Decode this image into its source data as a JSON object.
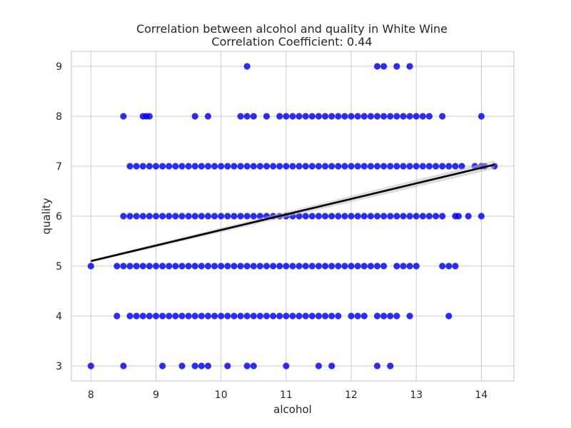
{
  "chart_data": {
    "type": "scatter",
    "title": "Correlation between alcohol and quality in White Wine",
    "subtitle": "Correlation Coefficient: 0.44",
    "xlabel": "alcohol",
    "ylabel": "quality",
    "xlim": [
      7.7,
      14.5
    ],
    "ylim": [
      2.7,
      9.3
    ],
    "xticks": [
      8,
      9,
      10,
      11,
      12,
      13,
      14
    ],
    "yticks": [
      3,
      4,
      5,
      6,
      7,
      8,
      9
    ],
    "grid": true,
    "colors": {
      "points": "#0000ee",
      "regression": "#000000",
      "ci_band": "#bbbbbb"
    },
    "regression": {
      "x": [
        8.0,
        14.2
      ],
      "y": [
        5.1,
        7.03
      ]
    },
    "series": [
      {
        "quality": 9,
        "x": [
          10.4,
          12.4,
          12.5,
          12.7,
          12.9
        ]
      },
      {
        "quality": 8,
        "x": [
          8.5,
          8.8,
          8.85,
          8.9,
          9.6,
          9.8,
          10.3,
          10.4,
          10.5,
          10.7,
          10.9,
          11.0,
          11.1,
          11.2,
          11.3,
          11.4,
          11.5,
          11.6,
          11.7,
          11.8,
          11.9,
          12.0,
          12.1,
          12.2,
          12.3,
          12.4,
          12.5,
          12.6,
          12.7,
          12.8,
          12.9,
          13.0,
          13.1,
          13.2,
          13.4,
          14.0
        ]
      },
      {
        "quality": 7,
        "x": [
          8.6,
          8.7,
          8.8,
          8.9,
          9.0,
          9.1,
          9.2,
          9.3,
          9.4,
          9.5,
          9.6,
          9.7,
          9.8,
          9.9,
          10.0,
          10.1,
          10.2,
          10.3,
          10.4,
          10.5,
          10.6,
          10.7,
          10.8,
          10.9,
          11.0,
          11.1,
          11.2,
          11.3,
          11.4,
          11.5,
          11.6,
          11.7,
          11.8,
          11.9,
          12.0,
          12.1,
          12.2,
          12.3,
          12.4,
          12.5,
          12.6,
          12.7,
          12.8,
          12.9,
          13.0,
          13.1,
          13.2,
          13.3,
          13.4,
          13.5,
          13.6,
          13.7,
          13.9,
          14.0,
          14.05,
          14.2
        ]
      },
      {
        "quality": 6,
        "x": [
          8.5,
          8.6,
          8.7,
          8.8,
          8.9,
          9.0,
          9.1,
          9.2,
          9.3,
          9.4,
          9.5,
          9.6,
          9.7,
          9.8,
          9.9,
          10.0,
          10.1,
          10.2,
          10.3,
          10.4,
          10.5,
          10.6,
          10.7,
          10.8,
          10.9,
          11.0,
          11.1,
          11.2,
          11.3,
          11.4,
          11.5,
          11.6,
          11.7,
          11.8,
          11.9,
          12.0,
          12.1,
          12.2,
          12.3,
          12.4,
          12.5,
          12.6,
          12.7,
          12.8,
          12.9,
          13.0,
          13.1,
          13.2,
          13.3,
          13.4,
          13.6,
          13.65,
          13.8,
          14.0
        ]
      },
      {
        "quality": 5,
        "x": [
          8.0,
          8.4,
          8.5,
          8.6,
          8.7,
          8.8,
          8.9,
          9.0,
          9.1,
          9.2,
          9.3,
          9.4,
          9.5,
          9.6,
          9.7,
          9.8,
          9.9,
          10.0,
          10.1,
          10.2,
          10.3,
          10.4,
          10.5,
          10.6,
          10.7,
          10.8,
          10.9,
          11.0,
          11.1,
          11.2,
          11.3,
          11.4,
          11.5,
          11.6,
          11.7,
          11.8,
          11.9,
          12.0,
          12.1,
          12.2,
          12.3,
          12.4,
          12.5,
          12.7,
          12.8,
          12.9,
          13.0,
          13.4,
          13.5,
          13.6
        ]
      },
      {
        "quality": 4,
        "x": [
          8.4,
          8.6,
          8.7,
          8.8,
          8.9,
          9.0,
          9.1,
          9.2,
          9.3,
          9.4,
          9.5,
          9.6,
          9.7,
          9.8,
          9.9,
          10.0,
          10.1,
          10.2,
          10.3,
          10.4,
          10.5,
          10.6,
          10.7,
          10.8,
          10.9,
          11.0,
          11.1,
          11.2,
          11.3,
          11.4,
          11.5,
          11.6,
          11.7,
          11.8,
          12.0,
          12.1,
          12.2,
          12.4,
          12.5,
          12.6,
          12.7,
          12.9,
          13.5
        ]
      },
      {
        "quality": 3,
        "x": [
          8.0,
          8.5,
          9.1,
          9.4,
          9.6,
          9.7,
          9.8,
          10.1,
          10.4,
          10.5,
          11.0,
          11.5,
          11.7,
          12.4,
          12.6
        ]
      }
    ]
  }
}
